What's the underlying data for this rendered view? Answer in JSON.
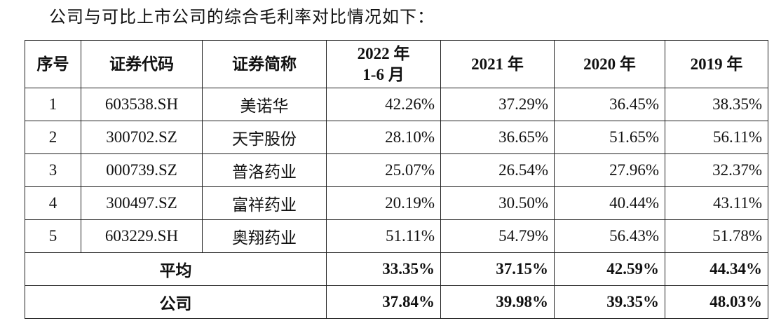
{
  "intro": "公司与可比上市公司的综合毛利率对比情况如下：",
  "table": {
    "header": [
      "序号",
      "证券代码",
      "证券简称",
      [
        "2022 年",
        "1-6 月"
      ],
      "2021 年",
      "2020 年",
      "2019 年"
    ],
    "rows": [
      [
        "1",
        "603538.SH",
        "美诺华",
        "42.26%",
        "37.29%",
        "36.45%",
        "38.35%"
      ],
      [
        "2",
        "300702.SZ",
        "天宇股份",
        "28.10%",
        "36.65%",
        "51.65%",
        "56.11%"
      ],
      [
        "3",
        "000739.SZ",
        "普洛药业",
        "25.07%",
        "26.54%",
        "27.96%",
        "32.37%"
      ],
      [
        "4",
        "300497.SZ",
        "富祥药业",
        "20.19%",
        "30.50%",
        "40.44%",
        "43.11%"
      ],
      [
        "5",
        "603229.SH",
        "奥翔药业",
        "51.11%",
        "54.79%",
        "56.43%",
        "51.78%"
      ]
    ],
    "summary": [
      {
        "label": "平均",
        "values": [
          "33.35%",
          "37.15%",
          "42.59%",
          "44.34%"
        ]
      },
      {
        "label": "公司",
        "values": [
          "37.84%",
          "39.98%",
          "39.35%",
          "48.03%"
        ]
      }
    ]
  }
}
